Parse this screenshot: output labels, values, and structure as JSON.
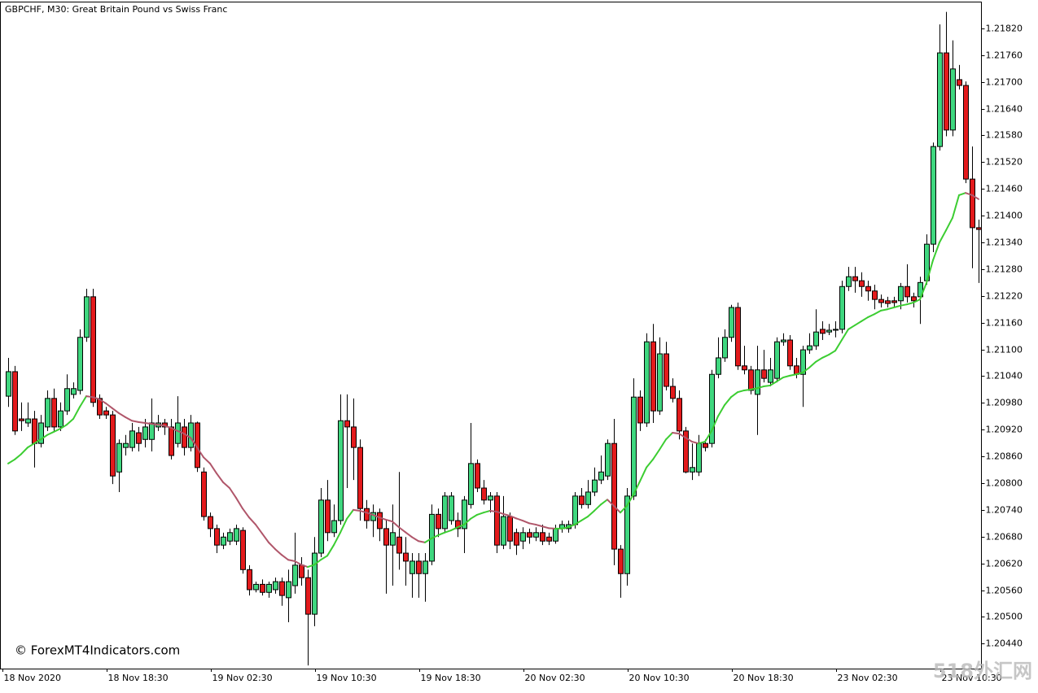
{
  "chart_data": {
    "type": "candlestick",
    "title": "GBPCHF, M30:  Great Britain Pound vs Swiss Franc",
    "annotations": [
      "© ForexMT4Indicators.com",
      "518外汇网"
    ],
    "up_color": "#3fd77f",
    "down_color": "#e31a1c",
    "open": [
      1.20995,
      1.2105,
      1.20944,
      1.20935,
      1.20944,
      1.20889,
      1.20926,
      1.2099,
      1.20926,
      1.20962,
      1.20999,
      1.21008,
      1.21127,
      1.21218,
      1.2099,
      1.20962,
      1.20953,
      1.20825,
      1.2088,
      1.2088,
      1.20913,
      1.20898,
      1.20898,
      1.20926,
      1.20935,
      1.20926,
      1.20889,
      1.20926,
      1.2088,
      1.20935,
      1.20825,
      1.20725,
      1.20698,
      1.20661,
      1.2067,
      1.2067,
      1.20694,
      1.20606,
      1.20561,
      1.20573,
      1.20555,
      1.20561,
      1.20579,
      1.20543,
      1.2057,
      1.20616,
      1.20588,
      1.20506,
      1.20643,
      1.20762,
      1.20689,
      1.20716,
      1.2094,
      1.20926,
      1.2088,
      1.20743,
      1.20716,
      1.20734,
      1.20698,
      1.20661,
      1.20679,
      1.20643,
      1.20597,
      1.20625,
      1.20597,
      1.20625,
      1.2073,
      1.20698,
      1.20716,
      1.20716,
      1.20698,
      1.20752,
      1.20844,
      1.20789,
      1.20762,
      1.20771,
      1.20661,
      1.20725,
      1.20689,
      1.2067,
      1.20689,
      1.20679,
      1.20689,
      1.20679,
      1.2067,
      1.20698,
      1.20698,
      1.20707,
      1.20771,
      1.20752,
      1.2078,
      1.20807,
      1.20816,
      1.20889,
      1.20652,
      1.20597,
      1.20771,
      1.20993,
      1.20935,
      1.21117,
      1.20962,
      1.2109,
      1.21017,
      1.2099,
      1.20917,
      1.20825,
      1.20825,
      1.20889,
      1.20889,
      1.21044,
      1.21081,
      1.21127,
      1.21194,
      1.21063,
      1.21054,
      1.20999,
      1.21054,
      1.21026,
      1.21035,
      1.21117,
      1.21121,
      1.21063,
      1.21044,
      1.21099,
      1.21108,
      1.21145,
      1.21139,
      1.21143,
      1.21145,
      1.21241,
      1.21263,
      1.21254,
      1.21241,
      1.21231,
      1.21212,
      1.21209,
      1.21209,
      1.21209,
      1.21241,
      1.21218,
      1.21218,
      1.21254,
      1.21336,
      1.21555,
      1.21765,
      1.21592,
      1.21705,
      1.21692,
      1.21482,
      1.21373
    ],
    "high": [
      1.21081,
      1.21063,
      1.20981,
      1.20981,
      1.20962,
      1.20953,
      1.21008,
      1.21012,
      1.20981,
      1.21044,
      1.21026,
      1.21145,
      1.21236,
      1.21236,
      1.20999,
      1.20971,
      1.20962,
      1.20898,
      1.20908,
      1.20935,
      1.20926,
      1.20944,
      1.2099,
      1.20953,
      1.20944,
      1.20944,
      1.20995,
      1.20944,
      1.20953,
      1.20938,
      1.20835,
      1.20734,
      1.20707,
      1.20689,
      1.20698,
      1.20707,
      1.20701,
      1.20616,
      1.20579,
      1.20584,
      1.20579,
      1.20588,
      1.20588,
      1.20606,
      1.20689,
      1.20634,
      1.20606,
      1.20679,
      1.20789,
      1.20807,
      1.20752,
      1.20999,
      1.20999,
      1.2099,
      1.20898,
      1.20762,
      1.20752,
      1.20743,
      1.20716,
      1.20752,
      1.20825,
      1.20679,
      1.20643,
      1.20643,
      1.20643,
      1.20752,
      1.20743,
      1.2078,
      1.2078,
      1.20734,
      1.20771,
      1.20935,
      1.20853,
      1.20807,
      1.2078,
      1.2078,
      1.20771,
      1.20734,
      1.20698,
      1.20701,
      1.20698,
      1.20701,
      1.20707,
      1.20689,
      1.20707,
      1.20716,
      1.20716,
      1.2078,
      1.20789,
      1.20807,
      1.20835,
      1.20862,
      1.20898,
      1.20944,
      1.20661,
      1.20789,
      1.21035,
      1.21008,
      1.21136,
      1.21157,
      1.21127,
      1.21117,
      1.21035,
      1.21008,
      1.20926,
      1.20889,
      1.20908,
      1.20898,
      1.21054,
      1.21127,
      1.21145,
      1.212,
      1.21205,
      1.21108,
      1.21063,
      1.21108,
      1.21099,
      1.21081,
      1.21127,
      1.21136,
      1.21132,
      1.21081,
      1.21108,
      1.21136,
      1.2119,
      1.21163,
      1.21157,
      1.21163,
      1.21254,
      1.21285,
      1.21285,
      1.21273,
      1.21254,
      1.21245,
      1.21223,
      1.21218,
      1.21218,
      1.21249,
      1.21291,
      1.21227,
      1.21263,
      1.21358,
      1.21564,
      1.21829,
      1.21857,
      1.21793,
      1.21738,
      1.21701,
      1.21555,
      1.21391
    ],
    "low": [
      1.20971,
      1.20908,
      1.20917,
      1.20926,
      1.20835,
      1.2088,
      1.20917,
      1.20917,
      1.20917,
      1.20953,
      1.2099,
      1.20999,
      1.21117,
      1.20971,
      1.20944,
      1.20944,
      1.20798,
      1.2078,
      1.20862,
      1.20871,
      1.20871,
      1.2088,
      1.20871,
      1.20917,
      1.20908,
      1.20853,
      1.2088,
      1.20862,
      1.20871,
      1.20825,
      1.20716,
      1.20679,
      1.20643,
      1.20652,
      1.20661,
      1.20661,
      1.20597,
      1.20548,
      1.20555,
      1.20548,
      1.20543,
      1.20552,
      1.20525,
      1.20488,
      1.20552,
      1.2057,
      1.20391,
      1.20479,
      1.20634,
      1.2067,
      1.20679,
      1.20707,
      1.20789,
      1.20807,
      1.20716,
      1.20698,
      1.20679,
      1.2067,
      1.20552,
      1.2057,
      1.20606,
      1.2057,
      1.20543,
      1.20543,
      1.20534,
      1.20616,
      1.20679,
      1.20689,
      1.20707,
      1.20679,
      1.20643,
      1.20743,
      1.2078,
      1.20752,
      1.20734,
      1.20643,
      1.20652,
      1.20652,
      1.20639,
      1.20652,
      1.20664,
      1.2067,
      1.20661,
      1.20661,
      1.20664,
      1.20689,
      1.20689,
      1.20698,
      1.20743,
      1.20743,
      1.20771,
      1.20798,
      1.20807,
      1.20616,
      1.20543,
      1.2057,
      1.20762,
      1.20917,
      1.20926,
      1.20935,
      1.20953,
      1.21008,
      1.20981,
      1.20898,
      1.20822,
      1.20807,
      1.20816,
      1.20871,
      1.2088,
      1.21035,
      1.21072,
      1.21117,
      1.21054,
      1.21044,
      1.20999,
      1.20908,
      1.21026,
      1.21017,
      1.21026,
      1.21108,
      1.21054,
      1.21035,
      1.20971,
      1.2109,
      1.21099,
      1.21121,
      1.21132,
      1.21127,
      1.21136,
      1.21231,
      1.21227,
      1.21218,
      1.21209,
      1.2119,
      1.21194,
      1.21194,
      1.21194,
      1.2119,
      1.21205,
      1.21194,
      1.21157,
      1.21245,
      1.21318,
      1.21546,
      1.21578,
      1.21578,
      1.21683,
      1.21473,
      1.21282,
      1.21249
    ],
    "close": [
      1.2105,
      1.20917,
      1.2094,
      1.20944,
      1.20889,
      1.20935,
      1.2099,
      1.20926,
      1.20962,
      1.21012,
      1.21012,
      1.21127,
      1.21218,
      1.20981,
      1.20953,
      1.20953,
      1.20816,
      1.20889,
      1.20889,
      1.20917,
      1.20889,
      1.20926,
      1.20935,
      1.20935,
      1.20926,
      1.20862,
      1.20935,
      1.2088,
      1.20935,
      1.20835,
      1.20725,
      1.20698,
      1.20661,
      1.20679,
      1.20689,
      1.20698,
      1.20606,
      1.20561,
      1.20573,
      1.20555,
      1.20573,
      1.20579,
      1.20548,
      1.20579,
      1.20616,
      1.20588,
      1.20506,
      1.20643,
      1.20762,
      1.20689,
      1.20716,
      1.2094,
      1.20926,
      1.2088,
      1.20743,
      1.20716,
      1.20734,
      1.20698,
      1.20661,
      1.20689,
      1.20643,
      1.20625,
      1.20625,
      1.20597,
      1.20625,
      1.2073,
      1.20698,
      1.20771,
      1.20771,
      1.20698,
      1.20762,
      1.20844,
      1.20789,
      1.20762,
      1.20771,
      1.20661,
      1.20725,
      1.2067,
      1.20661,
      1.20689,
      1.20679,
      1.20689,
      1.2067,
      1.2067,
      1.20698,
      1.20707,
      1.20707,
      1.20771,
      1.20752,
      1.2078,
      1.20807,
      1.20825,
      1.20889,
      1.20652,
      1.20597,
      1.20771,
      1.20993,
      1.20935,
      1.21117,
      1.20962,
      1.2109,
      1.21017,
      1.2099,
      1.20917,
      1.20825,
      1.20835,
      1.20889,
      1.2088,
      1.21044,
      1.21081,
      1.21127,
      1.21194,
      1.21063,
      1.21054,
      1.21008,
      1.21054,
      1.21035,
      1.21054,
      1.21117,
      1.21121,
      1.21063,
      1.21044,
      1.21099,
      1.21108,
      1.21139,
      1.21136,
      1.21143,
      1.21145,
      1.21241,
      1.21263,
      1.21254,
      1.21241,
      1.21231,
      1.21212,
      1.21205,
      1.21203,
      1.21205,
      1.21241,
      1.21218,
      1.21209,
      1.2125,
      1.21336,
      1.21555,
      1.21765,
      1.21592,
      1.21729,
      1.21692,
      1.21482,
      1.21373,
      1.21369
    ],
    "ma": {
      "up_color": "#3ccd32",
      "down_color": "#b0566a",
      "values": [
        1.20844,
        1.20853,
        1.20865,
        1.2088,
        1.20889,
        1.20898,
        1.20908,
        1.20915,
        1.20922,
        1.20931,
        1.20944,
        1.20971,
        1.20995,
        1.20993,
        1.20988,
        1.20979,
        1.20968,
        1.20957,
        1.20948,
        1.2094,
        1.20937,
        1.20935,
        1.20933,
        1.20931,
        1.20929,
        1.20924,
        1.20917,
        1.20911,
        1.20902,
        1.2088,
        1.20858,
        1.20844,
        1.20822,
        1.20802,
        1.20789,
        1.20767,
        1.20743,
        1.20723,
        1.20707,
        1.20687,
        1.20667,
        1.20652,
        1.20639,
        1.20628,
        1.20625,
        1.20617,
        1.20612,
        1.20617,
        1.20628,
        1.20637,
        1.20661,
        1.20689,
        1.2072,
        1.2074,
        1.20738,
        1.20734,
        1.20729,
        1.20723,
        1.20718,
        1.20714,
        1.20701,
        1.2069,
        1.20679,
        1.2067,
        1.20667,
        1.20676,
        1.20683,
        1.20689,
        1.20694,
        1.20701,
        1.20707,
        1.2072,
        1.20729,
        1.20734,
        1.20738,
        1.20736,
        1.20731,
        1.20727,
        1.20721,
        1.20716,
        1.2071,
        1.20707,
        1.20703,
        1.20699,
        1.20698,
        1.20698,
        1.20701,
        1.20707,
        1.20716,
        1.20725,
        1.20738,
        1.20752,
        1.20763,
        1.20749,
        1.20734,
        1.20749,
        1.20774,
        1.20804,
        1.20835,
        1.20853,
        1.20875,
        1.20898,
        1.20913,
        1.20911,
        1.20902,
        1.20893,
        1.20889,
        1.20893,
        1.20917,
        1.2095,
        1.20975,
        1.20993,
        1.21004,
        1.21008,
        1.2101,
        1.21013,
        1.21017,
        1.21019,
        1.21028,
        1.21037,
        1.21041,
        1.21044,
        1.21048,
        1.21059,
        1.21072,
        1.21081,
        1.21088,
        1.21097,
        1.21121,
        1.21145,
        1.21154,
        1.21163,
        1.21172,
        1.21179,
        1.21187,
        1.2119,
        1.21194,
        1.21198,
        1.21201,
        1.21205,
        1.21212,
        1.21249,
        1.213,
        1.2134,
        1.21367,
        1.21395,
        1.21446,
        1.21451,
        1.21446,
        1.21437
      ]
    },
    "ylim": [
      1.20384,
      1.2188
    ],
    "yticks": [
      {
        "value": 1.2182,
        "label": "1.21820"
      },
      {
        "value": 1.2176,
        "label": "1.21760"
      },
      {
        "value": 1.217,
        "label": "1.21700"
      },
      {
        "value": 1.2164,
        "label": "1.21640"
      },
      {
        "value": 1.2158,
        "label": "1.21580"
      },
      {
        "value": 1.2152,
        "label": "1.21520"
      },
      {
        "value": 1.2146,
        "label": "1.21460"
      },
      {
        "value": 1.214,
        "label": "1.21400"
      },
      {
        "value": 1.2134,
        "label": "1.21340"
      },
      {
        "value": 1.2128,
        "label": "1.21280"
      },
      {
        "value": 1.2122,
        "label": "1.21220"
      },
      {
        "value": 1.2116,
        "label": "1.21160"
      },
      {
        "value": 1.211,
        "label": "1.21100"
      },
      {
        "value": 1.2104,
        "label": "1.21040"
      },
      {
        "value": 1.2098,
        "label": "1.20980"
      },
      {
        "value": 1.2092,
        "label": "1.20920"
      },
      {
        "value": 1.2086,
        "label": "1.20860"
      },
      {
        "value": 1.208,
        "label": "1.20800"
      },
      {
        "value": 1.2074,
        "label": "1.20740"
      },
      {
        "value": 1.2068,
        "label": "1.20680"
      },
      {
        "value": 1.2062,
        "label": "1.20620"
      },
      {
        "value": 1.2056,
        "label": "1.20560"
      },
      {
        "value": 1.205,
        "label": "1.20500"
      },
      {
        "value": 1.2044,
        "label": "1.20440"
      }
    ],
    "xticks": [
      {
        "value": 0,
        "label": "18 Nov 2020"
      },
      {
        "value": 16,
        "label": "18 Nov 18:30"
      },
      {
        "value": 32,
        "label": "19 Nov 02:30"
      },
      {
        "value": 48,
        "label": "19 Nov 10:30"
      },
      {
        "value": 64,
        "label": "19 Nov 18:30"
      },
      {
        "value": 80,
        "label": "20 Nov 02:30"
      },
      {
        "value": 96,
        "label": "20 Nov 10:30"
      },
      {
        "value": 112,
        "label": "20 Nov 18:30"
      },
      {
        "value": 128,
        "label": "23 Nov 02:30"
      },
      {
        "value": 144,
        "label": "23 Nov 10:30"
      }
    ]
  }
}
